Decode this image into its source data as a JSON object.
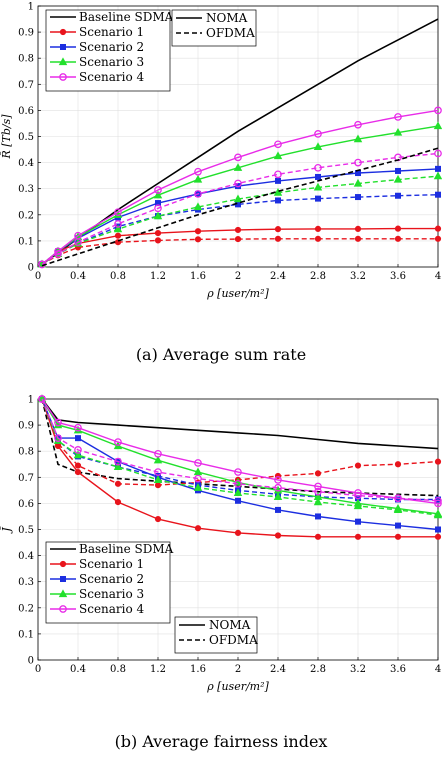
{
  "chart_data": [
    {
      "type": "line",
      "caption": "(a) Average sum rate",
      "xlabel": "ρ [user/m²]",
      "ylabel": "R̄ [Tb/s]",
      "xlim": [
        0,
        4
      ],
      "ylim": [
        0,
        1
      ],
      "xticks": [
        "0",
        "0.4",
        "0.8",
        "1.2",
        "1.6",
        "2",
        "2.4",
        "2.8",
        "3.2",
        "3.6",
        "4"
      ],
      "yticks": [
        "0",
        "0.1",
        "0.2",
        "0.3",
        "0.4",
        "0.5",
        "0.6",
        "0.7",
        "0.8",
        "0.9",
        "1"
      ],
      "grid": true,
      "legend": {
        "placement": "top-left",
        "entries": [
          "Baseline SDMA",
          "Scenario 1",
          "Scenario 2",
          "Scenario 3",
          "Scenario 4"
        ]
      },
      "legend2": {
        "placement": "top-center",
        "entries": [
          "NOMA",
          "OFDMA"
        ]
      },
      "series": [
        {
          "name": "Baseline SDMA",
          "color": "#000000",
          "dash": false,
          "marker": "none",
          "x": [
            0.04,
            0.4,
            0.8,
            1.2,
            1.6,
            2.0,
            2.4,
            2.8,
            3.2,
            3.6,
            4.0
          ],
          "y": [
            0.01,
            0.11,
            0.22,
            0.32,
            0.42,
            0.52,
            0.61,
            0.7,
            0.79,
            0.87,
            0.95
          ]
        },
        {
          "name": "Scenario 1 NOMA",
          "color": "#e8141c",
          "dash": false,
          "marker": "circle",
          "x": [
            0.04,
            0.2,
            0.4,
            0.8,
            1.2,
            1.6,
            2.0,
            2.4,
            2.8,
            3.2,
            3.6,
            4.0
          ],
          "y": [
            0.01,
            0.06,
            0.09,
            0.12,
            0.13,
            0.137,
            0.142,
            0.145,
            0.146,
            0.146,
            0.147,
            0.147
          ]
        },
        {
          "name": "Scenario 1 OFDMA",
          "color": "#e8141c",
          "dash": true,
          "marker": "circle",
          "x": [
            0.04,
            0.2,
            0.4,
            0.8,
            1.2,
            1.6,
            2.0,
            2.4,
            2.8,
            3.2,
            3.6,
            4.0
          ],
          "y": [
            0.01,
            0.045,
            0.075,
            0.095,
            0.102,
            0.106,
            0.107,
            0.108,
            0.108,
            0.108,
            0.108,
            0.108
          ]
        },
        {
          "name": "Scenario 2 NOMA",
          "color": "#1c2ee0",
          "dash": false,
          "marker": "square",
          "x": [
            0.04,
            0.2,
            0.4,
            0.8,
            1.2,
            1.6,
            2.0,
            2.4,
            2.8,
            3.2,
            3.6,
            4.0
          ],
          "y": [
            0.01,
            0.06,
            0.11,
            0.19,
            0.245,
            0.28,
            0.31,
            0.33,
            0.345,
            0.36,
            0.368,
            0.376
          ]
        },
        {
          "name": "Scenario 2 OFDMA",
          "color": "#1c2ee0",
          "dash": true,
          "marker": "square",
          "x": [
            0.04,
            0.2,
            0.4,
            0.8,
            1.2,
            1.6,
            2.0,
            2.4,
            2.8,
            3.2,
            3.6,
            4.0
          ],
          "y": [
            0.01,
            0.05,
            0.09,
            0.155,
            0.195,
            0.22,
            0.24,
            0.255,
            0.262,
            0.268,
            0.273,
            0.277
          ]
        },
        {
          "name": "Scenario 3 NOMA",
          "color": "#22e02c",
          "dash": false,
          "marker": "triangle",
          "x": [
            0.04,
            0.2,
            0.4,
            0.8,
            1.2,
            1.6,
            2.0,
            2.4,
            2.8,
            3.2,
            3.6,
            4.0
          ],
          "y": [
            0.01,
            0.06,
            0.115,
            0.2,
            0.275,
            0.335,
            0.38,
            0.425,
            0.46,
            0.49,
            0.515,
            0.54
          ]
        },
        {
          "name": "Scenario 3 OFDMA",
          "color": "#22e02c",
          "dash": true,
          "marker": "triangle",
          "x": [
            0.04,
            0.2,
            0.4,
            0.8,
            1.2,
            1.6,
            2.0,
            2.4,
            2.8,
            3.2,
            3.6,
            4.0
          ],
          "y": [
            0.01,
            0.05,
            0.09,
            0.145,
            0.195,
            0.23,
            0.26,
            0.285,
            0.305,
            0.32,
            0.335,
            0.348
          ]
        },
        {
          "name": "Scenario 4 NOMA",
          "color": "#e82ce8",
          "dash": false,
          "marker": "circle-open",
          "x": [
            0.04,
            0.2,
            0.4,
            0.8,
            1.2,
            1.6,
            2.0,
            2.4,
            2.8,
            3.2,
            3.6,
            4.0
          ],
          "y": [
            0.01,
            0.06,
            0.12,
            0.21,
            0.295,
            0.365,
            0.42,
            0.47,
            0.51,
            0.545,
            0.575,
            0.6
          ]
        },
        {
          "name": "Scenario 4 OFDMA",
          "color": "#e82ce8",
          "dash": true,
          "marker": "circle-open",
          "x": [
            0.04,
            0.2,
            0.4,
            0.8,
            1.2,
            1.6,
            2.0,
            2.4,
            2.8,
            3.2,
            3.6,
            4.0
          ],
          "y": [
            0.01,
            0.05,
            0.095,
            0.165,
            0.225,
            0.28,
            0.32,
            0.355,
            0.38,
            0.4,
            0.42,
            0.435
          ]
        },
        {
          "name": "Baseline OFDMA",
          "color": "#000000",
          "dash": true,
          "marker": "none",
          "x": [
            0.04,
            0.4,
            0.8,
            1.2,
            1.6,
            2.0,
            2.4,
            2.8,
            3.2,
            3.6,
            4.0
          ],
          "y": [
            0.005,
            0.05,
            0.1,
            0.15,
            0.2,
            0.245,
            0.29,
            0.33,
            0.37,
            0.41,
            0.455
          ]
        }
      ]
    },
    {
      "type": "line",
      "caption": "(b) Average fairness index",
      "xlabel": "ρ [user/m²]",
      "ylabel": "J̄",
      "xlim": [
        0,
        4
      ],
      "ylim": [
        0,
        1
      ],
      "xticks": [
        "0",
        "0.4",
        "0.8",
        "1.2",
        "1.6",
        "2",
        "2.4",
        "2.8",
        "3.2",
        "3.6",
        "4"
      ],
      "yticks": [
        "0",
        "0.1",
        "0.2",
        "0.3",
        "0.4",
        "0.5",
        "0.6",
        "0.7",
        "0.8",
        "0.9",
        "1"
      ],
      "grid": true,
      "legend": {
        "placement": "bottom-left",
        "entries": [
          "Baseline SDMA",
          "Scenario 1",
          "Scenario 2",
          "Scenario 3",
          "Scenario 4"
        ]
      },
      "legend2": {
        "placement": "bottom-center",
        "entries": [
          "NOMA",
          "OFDMA"
        ]
      },
      "series": [
        {
          "name": "Baseline SDMA",
          "color": "#000000",
          "dash": false,
          "marker": "none",
          "x": [
            0.04,
            0.2,
            0.4,
            0.8,
            1.2,
            1.6,
            2.0,
            2.4,
            2.8,
            3.2,
            3.6,
            4.0
          ],
          "y": [
            1.0,
            0.92,
            0.91,
            0.9,
            0.89,
            0.88,
            0.87,
            0.86,
            0.845,
            0.83,
            0.82,
            0.81
          ]
        },
        {
          "name": "Baseline OFDMA",
          "color": "#000000",
          "dash": true,
          "marker": "none",
          "x": [
            0.04,
            0.2,
            0.4,
            0.8,
            1.2,
            1.6,
            2.0,
            2.4,
            2.8,
            3.2,
            3.6,
            4.0
          ],
          "y": [
            1.0,
            0.75,
            0.72,
            0.695,
            0.685,
            0.675,
            0.665,
            0.655,
            0.645,
            0.64,
            0.635,
            0.63
          ]
        },
        {
          "name": "Scenario 1 NOMA",
          "color": "#e8141c",
          "dash": false,
          "marker": "circle",
          "x": [
            0.04,
            0.2,
            0.4,
            0.8,
            1.2,
            1.6,
            2.0,
            2.4,
            2.8,
            3.2,
            3.6,
            4.0
          ],
          "y": [
            1.0,
            0.82,
            0.72,
            0.605,
            0.54,
            0.505,
            0.487,
            0.477,
            0.472,
            0.472,
            0.472,
            0.472
          ]
        },
        {
          "name": "Scenario 1 OFDMA",
          "color": "#e8141c",
          "dash": true,
          "marker": "circle",
          "x": [
            0.04,
            0.2,
            0.4,
            0.8,
            1.2,
            1.6,
            2.0,
            2.4,
            2.8,
            3.2,
            3.6,
            4.0
          ],
          "y": [
            1.0,
            0.83,
            0.745,
            0.675,
            0.67,
            0.68,
            0.69,
            0.705,
            0.715,
            0.745,
            0.75,
            0.76
          ]
        },
        {
          "name": "Scenario 2 NOMA",
          "color": "#1c2ee0",
          "dash": false,
          "marker": "square",
          "x": [
            0.04,
            0.2,
            0.4,
            0.8,
            1.2,
            1.6,
            2.0,
            2.4,
            2.8,
            3.2,
            3.6,
            4.0
          ],
          "y": [
            1.0,
            0.85,
            0.85,
            0.76,
            0.7,
            0.65,
            0.61,
            0.575,
            0.55,
            0.53,
            0.515,
            0.5
          ]
        },
        {
          "name": "Scenario 2 OFDMA",
          "color": "#1c2ee0",
          "dash": true,
          "marker": "square",
          "x": [
            0.04,
            0.2,
            0.4,
            0.8,
            1.2,
            1.6,
            2.0,
            2.4,
            2.8,
            3.2,
            3.6,
            4.0
          ],
          "y": [
            1.0,
            0.84,
            0.78,
            0.74,
            0.705,
            0.67,
            0.65,
            0.635,
            0.625,
            0.62,
            0.615,
            0.615
          ]
        },
        {
          "name": "Scenario 3 NOMA",
          "color": "#22e02c",
          "dash": false,
          "marker": "triangle",
          "x": [
            0.04,
            0.2,
            0.4,
            0.8,
            1.2,
            1.6,
            2.0,
            2.4,
            2.8,
            3.2,
            3.6,
            4.0
          ],
          "y": [
            1.0,
            0.9,
            0.88,
            0.82,
            0.765,
            0.72,
            0.68,
            0.65,
            0.625,
            0.6,
            0.58,
            0.56
          ]
        },
        {
          "name": "Scenario 3 OFDMA",
          "color": "#22e02c",
          "dash": true,
          "marker": "triangle",
          "x": [
            0.04,
            0.2,
            0.4,
            0.8,
            1.2,
            1.6,
            2.0,
            2.4,
            2.8,
            3.2,
            3.6,
            4.0
          ],
          "y": [
            1.0,
            0.84,
            0.785,
            0.74,
            0.69,
            0.66,
            0.64,
            0.625,
            0.605,
            0.59,
            0.575,
            0.555
          ]
        },
        {
          "name": "Scenario 4 NOMA",
          "color": "#e82ce8",
          "dash": false,
          "marker": "circle-open",
          "x": [
            0.04,
            0.2,
            0.4,
            0.8,
            1.2,
            1.6,
            2.0,
            2.4,
            2.8,
            3.2,
            3.6,
            4.0
          ],
          "y": [
            1.0,
            0.91,
            0.89,
            0.835,
            0.79,
            0.755,
            0.72,
            0.69,
            0.665,
            0.64,
            0.62,
            0.6
          ]
        },
        {
          "name": "Scenario 4 OFDMA",
          "color": "#e82ce8",
          "dash": true,
          "marker": "circle-open",
          "x": [
            0.04,
            0.2,
            0.4,
            0.8,
            1.2,
            1.6,
            2.0,
            2.4,
            2.8,
            3.2,
            3.6,
            4.0
          ],
          "y": [
            1.0,
            0.85,
            0.805,
            0.76,
            0.72,
            0.695,
            0.675,
            0.66,
            0.645,
            0.63,
            0.62,
            0.61
          ]
        }
      ]
    }
  ]
}
